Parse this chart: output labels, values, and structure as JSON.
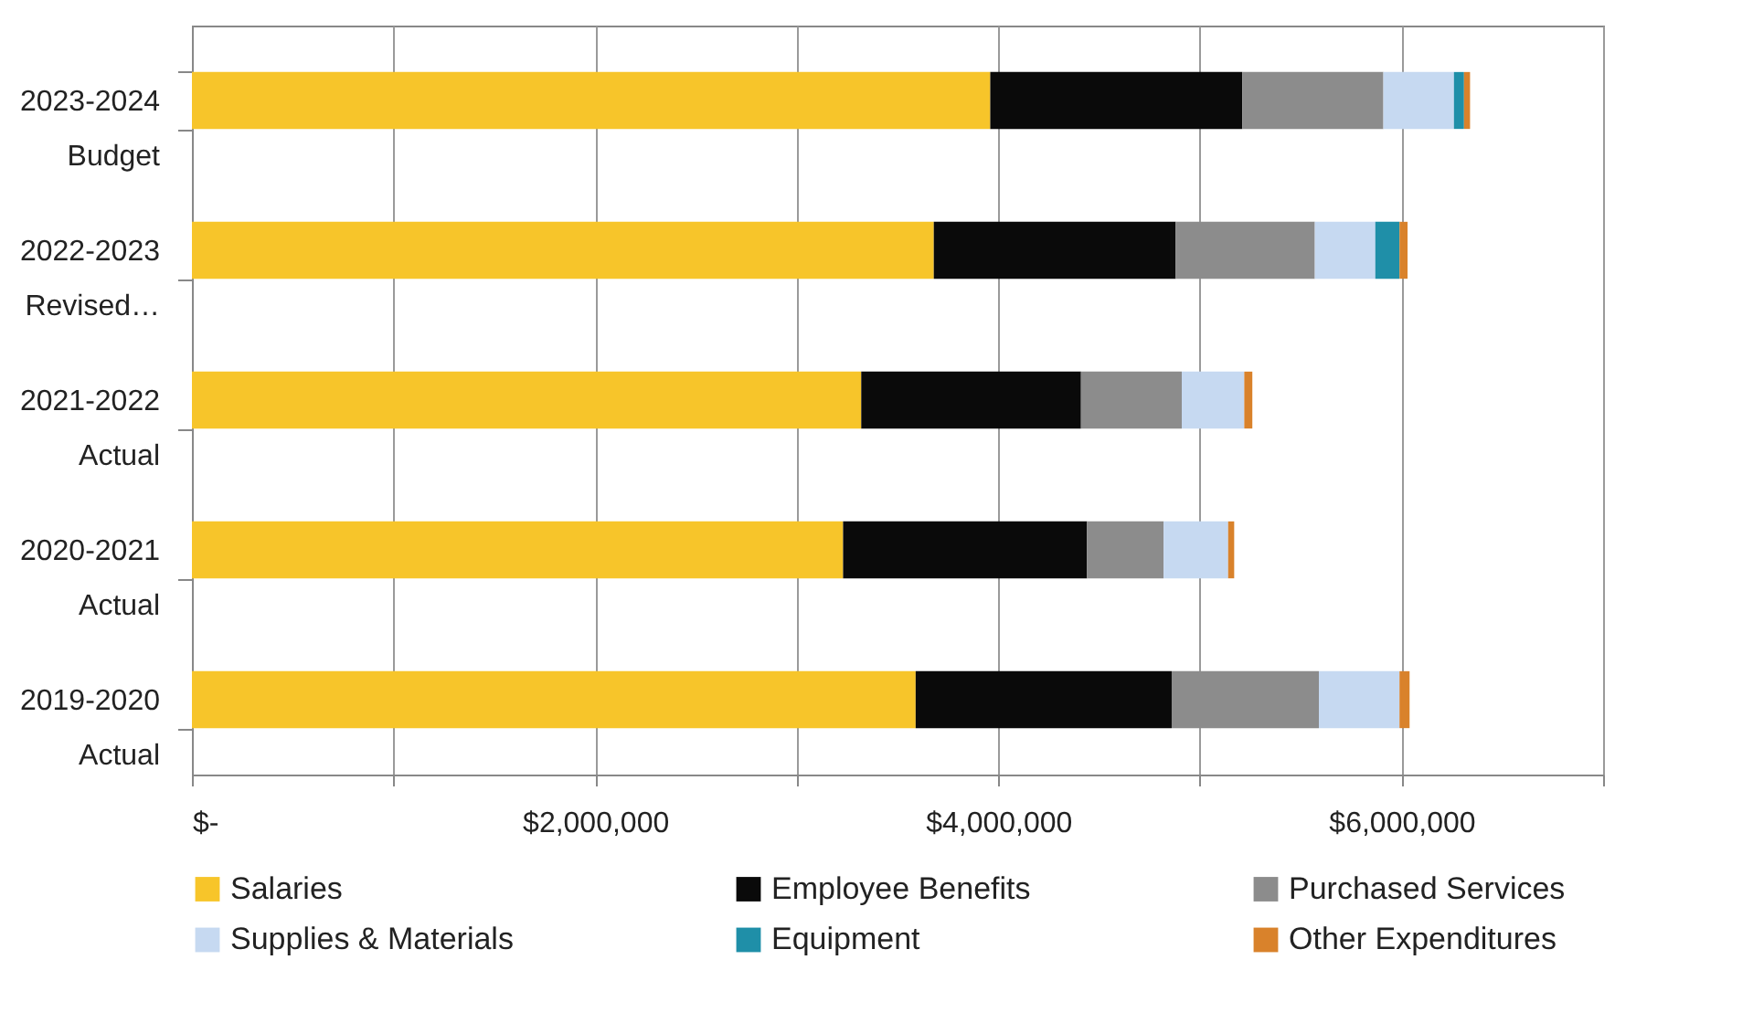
{
  "chart_data": {
    "type": "bar",
    "orientation": "horizontal",
    "stacked": true,
    "categories": [
      "2023-2024 Budget",
      "2022-2023 Revised…",
      "2021-2022 Actual",
      "2020-2021 Actual",
      "2019-2020 Actual"
    ],
    "series": [
      {
        "name": "Salaries",
        "color": "#f7c52a",
        "values": [
          3960000,
          3680000,
          3320000,
          3230000,
          3590000
        ]
      },
      {
        "name": "Employee Benefits",
        "color": "#0a0a0a",
        "values": [
          1250000,
          1200000,
          1090000,
          1210000,
          1270000
        ]
      },
      {
        "name": "Purchased Services",
        "color": "#8c8c8c",
        "values": [
          700000,
          690000,
          500000,
          380000,
          730000
        ]
      },
      {
        "name": "Supplies & Materials",
        "color": "#c6d9f1",
        "values": [
          350000,
          300000,
          310000,
          320000,
          400000
        ]
      },
      {
        "name": "Equipment",
        "color": "#1f8fa8",
        "values": [
          50000,
          120000,
          0,
          0,
          0
        ]
      },
      {
        "name": "Other Expenditures",
        "color": "#d9822b",
        "values": [
          30000,
          40000,
          40000,
          30000,
          50000
        ]
      }
    ],
    "xlim": [
      0,
      7000000
    ],
    "xticks": [
      {
        "value": 0,
        "label": "$-"
      },
      {
        "value": 1000000,
        "label": null
      },
      {
        "value": 2000000,
        "label": "$2,000,000"
      },
      {
        "value": 3000000,
        "label": null
      },
      {
        "value": 4000000,
        "label": "$4,000,000"
      },
      {
        "value": 5000000,
        "label": null
      },
      {
        "value": 6000000,
        "label": "$6,000,000"
      },
      {
        "value": 7000000,
        "label": null
      }
    ],
    "grid": "x",
    "legend": "bottom"
  }
}
